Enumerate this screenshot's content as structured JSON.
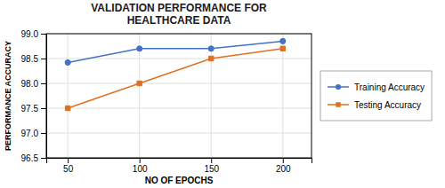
{
  "chart_data": {
    "type": "line",
    "title": "VALIDATION PERFORMANCE FOR\nHEALTHCARE DATA",
    "x_label": "NO OF EPOCHS",
    "y_label": "PERFORMANCE ACCURACY",
    "x": [
      50,
      100,
      150,
      200
    ],
    "series": [
      {
        "name": "Training Accuracy",
        "color": "#4472C4",
        "marker": "circle",
        "values": [
          98.42,
          98.7,
          98.7,
          98.85
        ]
      },
      {
        "name": "Testing Accuracy",
        "color": "#E07020",
        "marker": "square",
        "values": [
          97.5,
          98.0,
          98.5,
          98.7
        ]
      }
    ],
    "xlim": [
      35,
      220
    ],
    "xticks": [
      50,
      100,
      150,
      200
    ],
    "ylim": [
      96.5,
      99.0
    ],
    "yticks": [
      96.5,
      {
        "value": 97.0,
        "label": "97.0"
      },
      97.5,
      {
        "value": 98.0,
        "label": "98.0"
      },
      98.5,
      {
        "value": 99.0,
        "label": "99.0"
      }
    ],
    "grid": true,
    "legend": "right"
  }
}
